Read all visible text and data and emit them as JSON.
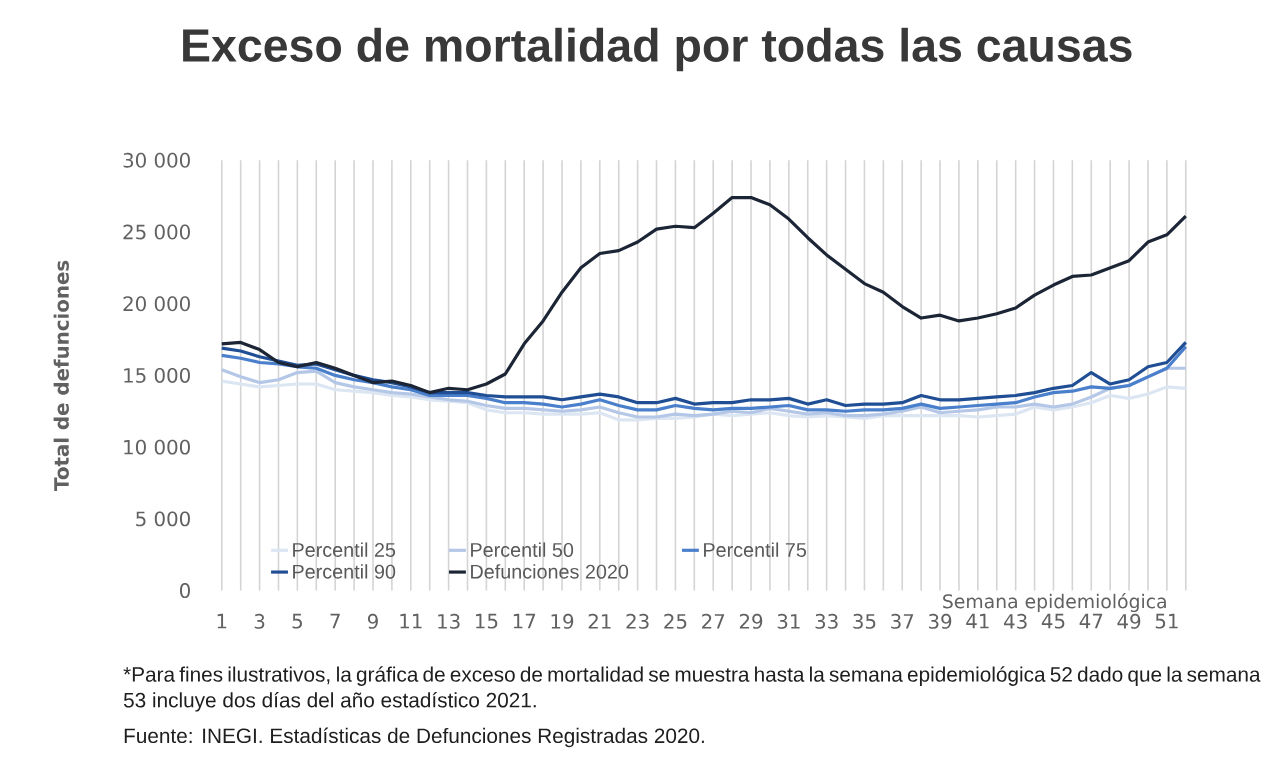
{
  "chart_data": {
    "type": "line",
    "title": "Exceso de mortalidad por todas las causas",
    "xlabel": "Semana epidemiológica",
    "ylabel": "Total de defunciones",
    "categories": [
      "1",
      null,
      "3",
      null,
      "5",
      null,
      "7",
      null,
      "9",
      null,
      "11",
      null,
      "13",
      null,
      "15",
      null,
      "17",
      null,
      "19",
      null,
      "21",
      null,
      "23",
      null,
      "25",
      null,
      "27",
      null,
      "29",
      null,
      "31",
      null,
      "33",
      null,
      "35",
      null,
      "37",
      null,
      "39",
      null,
      "41",
      null,
      "43",
      null,
      "45",
      null,
      "47",
      null,
      "49",
      null,
      "51",
      null
    ],
    "series": [
      {
        "name": "Percentil 25",
        "color": "#dce6f2",
        "values": [
          14600,
          14400,
          14200,
          14300,
          14400,
          14400,
          14000,
          13900,
          13800,
          13600,
          13500,
          13300,
          13200,
          13100,
          12600,
          12400,
          12400,
          12300,
          12300,
          12300,
          12400,
          11900,
          11900,
          12000,
          12000,
          12100,
          12300,
          12200,
          12300,
          12400,
          12200,
          12100,
          12200,
          12100,
          12000,
          12200,
          12200,
          12200,
          12200,
          12200,
          12100,
          12200,
          12300,
          12800,
          12600,
          12800,
          13100,
          13600,
          13400,
          13700,
          14200,
          14100
        ]
      },
      {
        "name": "Percentil 50",
        "color": "#b4c7e7",
        "values": [
          15400,
          14900,
          14500,
          14700,
          15200,
          15300,
          14500,
          14200,
          14000,
          13800,
          13700,
          13500,
          13300,
          13200,
          12900,
          12700,
          12700,
          12600,
          12500,
          12600,
          12800,
          12400,
          12100,
          12100,
          12300,
          12200,
          12300,
          12500,
          12400,
          12700,
          12500,
          12300,
          12400,
          12200,
          12200,
          12300,
          12500,
          12800,
          12400,
          12500,
          12600,
          12800,
          12800,
          13000,
          12800,
          13000,
          13500,
          14100,
          14300,
          14900,
          15500,
          15500
        ]
      },
      {
        "name": "Percentil 75",
        "color": "#4a7fcb",
        "values": [
          16400,
          16200,
          15900,
          15800,
          15600,
          15500,
          15000,
          14700,
          14500,
          14200,
          14000,
          13600,
          13600,
          13600,
          13400,
          13100,
          13100,
          13000,
          12800,
          13000,
          13300,
          12900,
          12600,
          12600,
          12900,
          12700,
          12600,
          12700,
          12700,
          12800,
          12900,
          12600,
          12600,
          12500,
          12600,
          12600,
          12700,
          13000,
          12700,
          12800,
          12900,
          13000,
          13100,
          13500,
          13800,
          13900,
          14200,
          14100,
          14300,
          14900,
          15500,
          17000
        ]
      },
      {
        "name": "Percentil 90",
        "color": "#1f4e94",
        "values": [
          16900,
          16700,
          16300,
          16000,
          15700,
          15800,
          15400,
          15000,
          14700,
          14500,
          14200,
          13800,
          13800,
          13800,
          13600,
          13500,
          13500,
          13500,
          13300,
          13500,
          13700,
          13500,
          13100,
          13100,
          13400,
          13000,
          13100,
          13100,
          13300,
          13300,
          13400,
          13000,
          13300,
          12900,
          13000,
          13000,
          13100,
          13600,
          13300,
          13300,
          13400,
          13500,
          13600,
          13800,
          14100,
          14300,
          15200,
          14400,
          14700,
          15600,
          15900,
          17300
        ]
      },
      {
        "name": "Defunciones 2020",
        "color": "#1c2535",
        "values": [
          17200,
          17300,
          16800,
          15900,
          15600,
          15900,
          15500,
          15000,
          14500,
          14600,
          14300,
          13800,
          14100,
          14000,
          14400,
          15100,
          17200,
          18800,
          20800,
          22500,
          23500,
          23700,
          24300,
          25200,
          25400,
          25300,
          26300,
          27400,
          27400,
          26900,
          25900,
          24600,
          23400,
          22400,
          21400,
          20800,
          19800,
          19000,
          19200,
          18800,
          19000,
          19300,
          19700,
          20600,
          21300,
          21900,
          22000,
          22500,
          23000,
          24300,
          24800,
          26100
        ]
      }
    ],
    "ylim": [
      0,
      30000
    ],
    "yticks": [
      0,
      {
        "value": 5000,
        "label": "5 000"
      },
      {
        "value": 10000,
        "label": "10 000"
      },
      {
        "value": 15000,
        "label": "15 000"
      },
      {
        "value": 20000,
        "label": "20 000"
      },
      {
        "value": 25000,
        "label": "25 000"
      },
      {
        "value": 30000,
        "label": "30 000"
      }
    ],
    "grid": "x",
    "legend": "bottom",
    "marker": "none",
    "line_style": "solid",
    "annotations": [
      "*Para fines ilustrativos, la gráfica de exceso de mortalidad se muestra hasta la semana epidemiológica 52 dado que la semana 53 incluye dos días del año estadístico 2021.",
      "Fuente: INEGI. Estadísticas de Defunciones Registradas 2020."
    ]
  }
}
